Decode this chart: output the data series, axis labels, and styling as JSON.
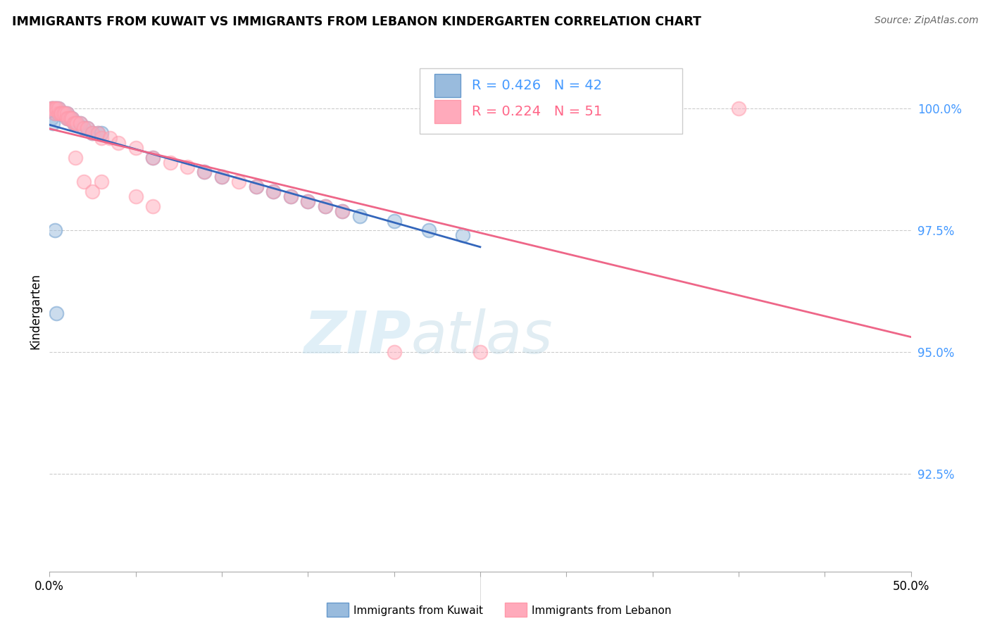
{
  "title": "IMMIGRANTS FROM KUWAIT VS IMMIGRANTS FROM LEBANON KINDERGARTEN CORRELATION CHART",
  "source": "Source: ZipAtlas.com",
  "ylabel": "Kindergarten",
  "ytick_labels": [
    "100.0%",
    "97.5%",
    "95.0%",
    "92.5%"
  ],
  "ytick_values": [
    1.0,
    0.975,
    0.95,
    0.925
  ],
  "xlim": [
    0.0,
    0.5
  ],
  "ylim": [
    0.905,
    1.012
  ],
  "kuwait_R": 0.426,
  "kuwait_N": 42,
  "lebanon_R": 0.224,
  "lebanon_N": 51,
  "kuwait_color": "#6699CC",
  "kuwait_fill": "#99BBDD",
  "lebanon_color": "#FF99AA",
  "lebanon_fill": "#FFAABB",
  "kuwait_trendline_color": "#3366BB",
  "lebanon_trendline_color": "#EE6688",
  "legend_kuwait_color": "#4499FF",
  "legend_lebanon_color": "#FF6688",
  "watermark_zip_color": "#AACCEE",
  "watermark_atlas_color": "#99BBCC",
  "background_color": "#FFFFFF",
  "kuwait_x": [
    0.001,
    0.002,
    0.003,
    0.003,
    0.004,
    0.005,
    0.005,
    0.006,
    0.007,
    0.008,
    0.009,
    0.01,
    0.01,
    0.011,
    0.012,
    0.013,
    0.014,
    0.015,
    0.016,
    0.018,
    0.02,
    0.022,
    0.025,
    0.028,
    0.03,
    0.06,
    0.09,
    0.1,
    0.12,
    0.13,
    0.14,
    0.15,
    0.16,
    0.17,
    0.18,
    0.2,
    0.22,
    0.24,
    0.001,
    0.002,
    0.003,
    0.004
  ],
  "kuwait_y": [
    1.0,
    1.0,
    1.0,
    0.999,
    1.0,
    1.0,
    0.999,
    0.999,
    0.999,
    0.999,
    0.999,
    0.999,
    0.998,
    0.998,
    0.998,
    0.998,
    0.997,
    0.997,
    0.997,
    0.997,
    0.996,
    0.996,
    0.995,
    0.995,
    0.995,
    0.99,
    0.987,
    0.986,
    0.984,
    0.983,
    0.982,
    0.981,
    0.98,
    0.979,
    0.978,
    0.977,
    0.975,
    0.974,
    0.998,
    0.997,
    0.975,
    0.958
  ],
  "lebanon_x": [
    0.001,
    0.002,
    0.002,
    0.003,
    0.003,
    0.004,
    0.005,
    0.005,
    0.006,
    0.007,
    0.007,
    0.008,
    0.009,
    0.01,
    0.01,
    0.011,
    0.012,
    0.013,
    0.014,
    0.015,
    0.016,
    0.018,
    0.02,
    0.022,
    0.025,
    0.028,
    0.03,
    0.035,
    0.04,
    0.05,
    0.06,
    0.07,
    0.08,
    0.09,
    0.1,
    0.11,
    0.12,
    0.13,
    0.14,
    0.15,
    0.16,
    0.17,
    0.015,
    0.02,
    0.025,
    0.03,
    0.05,
    0.06,
    0.4,
    0.2,
    0.25
  ],
  "lebanon_y": [
    1.0,
    1.0,
    1.0,
    1.0,
    0.999,
    1.0,
    0.999,
    1.0,
    0.999,
    0.999,
    0.999,
    0.999,
    0.999,
    0.999,
    0.998,
    0.998,
    0.998,
    0.998,
    0.997,
    0.997,
    0.997,
    0.997,
    0.996,
    0.996,
    0.995,
    0.995,
    0.994,
    0.994,
    0.993,
    0.992,
    0.99,
    0.989,
    0.988,
    0.987,
    0.986,
    0.985,
    0.984,
    0.983,
    0.982,
    0.981,
    0.98,
    0.979,
    0.99,
    0.985,
    0.983,
    0.985,
    0.982,
    0.98,
    1.0,
    0.95,
    0.95
  ]
}
